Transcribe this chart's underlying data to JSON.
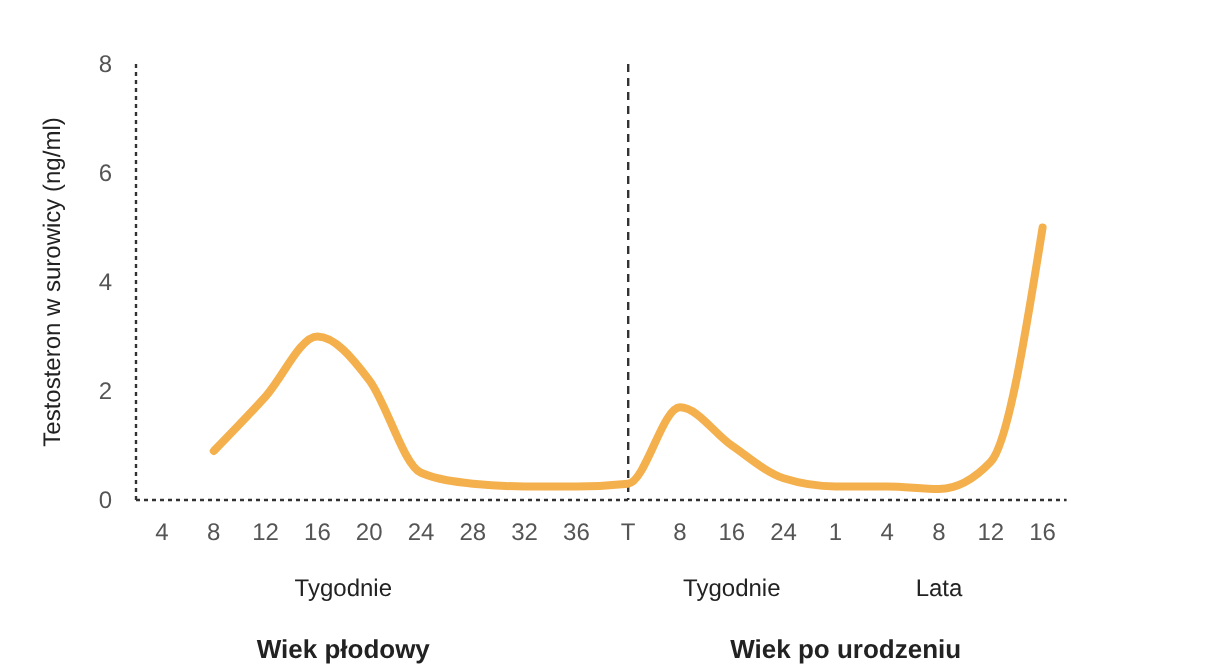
{
  "chart_data": {
    "type": "line",
    "ylabel": "Testosteron  w surowicy  (ng/ml)",
    "categories": [
      "4",
      "8",
      "12",
      "16",
      "20",
      "24",
      "28",
      "32",
      "36",
      "T",
      "8",
      "16",
      "24",
      "1",
      "4",
      "8",
      "12",
      "16"
    ],
    "series": [
      {
        "color": "#f5b04e",
        "values": [
          null,
          0.9,
          1.9,
          3.0,
          2.2,
          0.5,
          0.3,
          0.25,
          0.25,
          0.3,
          1.7,
          1.0,
          0.4,
          0.25,
          0.25,
          0.2,
          0.7,
          5.0
        ]
      }
    ],
    "ylim": [
      0,
      8
    ],
    "yticks": [
      0,
      2,
      4,
      6,
      8
    ],
    "grid": false,
    "marker": "none",
    "line_style": "solid",
    "ref_lines": [
      {
        "axis": "x",
        "value": "T",
        "line_style": "dashed",
        "color": "#333333"
      }
    ],
    "annotations": [
      "Tygodnie",
      "Wiek płodowy",
      "Tygodnie",
      "Lata",
      "Wiek po urodzeniu"
    ]
  }
}
